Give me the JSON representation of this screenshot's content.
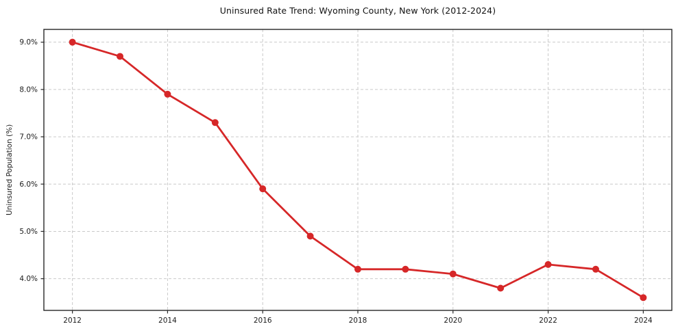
{
  "chart_data": {
    "type": "line",
    "title": "Uninsured Rate Trend: Wyoming County, New York (2012-2024)",
    "xlabel": "",
    "ylabel": "Uninsured Population (%)",
    "x": [
      2012,
      2013,
      2014,
      2015,
      2016,
      2017,
      2018,
      2019,
      2020,
      2021,
      2022,
      2023,
      2024
    ],
    "values": [
      9.0,
      8.7,
      7.9,
      7.3,
      5.9,
      4.9,
      4.2,
      4.2,
      4.1,
      3.8,
      4.3,
      4.2,
      3.6
    ],
    "xticks": [
      2012,
      2014,
      2016,
      2018,
      2020,
      2022,
      2024
    ],
    "xtick_labels": [
      "2012",
      "2014",
      "2016",
      "2018",
      "2020",
      "2022",
      "2024"
    ],
    "yticks": [
      4.0,
      5.0,
      6.0,
      7.0,
      8.0,
      9.0
    ],
    "ytick_labels": [
      "4.0%",
      "5.0%",
      "6.0%",
      "7.0%",
      "8.0%",
      "9.0%"
    ],
    "xlim": [
      2011.4,
      2024.6
    ],
    "ylim": [
      3.33,
      9.27
    ],
    "grid": "dashed",
    "legend": "none",
    "line_color": "#d62728",
    "grid_color": "#c9c9c9",
    "frame_color": "#262626"
  }
}
